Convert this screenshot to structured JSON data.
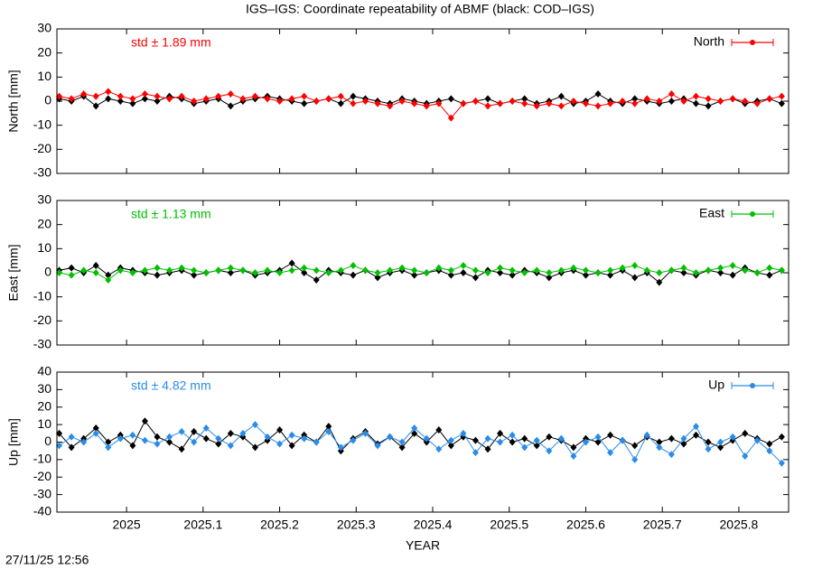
{
  "chart_data": [
    {
      "type": "line",
      "title": "IGS–IGS: Coordinate repeatability of ABMF (black: COD–IGS)",
      "ylabel": "North [mm]",
      "annotation": "std ± 1.89 mm",
      "ylim": [
        -30,
        30
      ],
      "yticks": [
        -30,
        -20,
        -10,
        0,
        10,
        20,
        30
      ],
      "legend": "upper right",
      "x": [
        2024.912,
        2024.928,
        2024.944,
        2024.96,
        2024.976,
        2024.992,
        2025.008,
        2025.024,
        2025.04,
        2025.056,
        2025.072,
        2025.088,
        2025.104,
        2025.12,
        2025.136,
        2025.152,
        2025.168,
        2025.184,
        2025.2,
        2025.216,
        2025.232,
        2025.248,
        2025.264,
        2025.28,
        2025.296,
        2025.312,
        2025.328,
        2025.344,
        2025.36,
        2025.376,
        2025.392,
        2025.408,
        2025.424,
        2025.44,
        2025.456,
        2025.472,
        2025.488,
        2025.504,
        2025.52,
        2025.536,
        2025.552,
        2025.568,
        2025.584,
        2025.6,
        2025.616,
        2025.632,
        2025.648,
        2025.664,
        2025.68,
        2025.696,
        2025.712,
        2025.728,
        2025.744,
        2025.76,
        2025.776,
        2025.792,
        2025.808,
        2025.824,
        2025.84,
        2025.856
      ],
      "series": [
        {
          "color": "#000000",
          "values": [
            1,
            0,
            2,
            -2,
            1,
            0,
            -1,
            1,
            0,
            2,
            1,
            -1,
            0,
            1,
            -2,
            0,
            1,
            2,
            1,
            0,
            -1,
            0,
            1,
            -1,
            2,
            1,
            0,
            -1,
            1,
            0,
            -1,
            0,
            1,
            -1,
            0,
            1,
            -1,
            0,
            1,
            -1,
            0,
            2,
            -1,
            0,
            3,
            0,
            -1,
            1,
            0,
            -1,
            0,
            1,
            -1,
            -2,
            0,
            1,
            -1,
            0,
            1,
            -1
          ]
        },
        {
          "name": "North",
          "color": "#ff0000",
          "values": [
            2,
            1,
            3,
            2,
            4,
            2,
            1,
            3,
            2,
            1,
            2,
            0,
            1,
            2,
            3,
            1,
            2,
            1,
            0,
            1,
            2,
            0,
            1,
            2,
            -1,
            0,
            -1,
            -2,
            0,
            -1,
            -2,
            -1,
            -7,
            -1,
            0,
            -2,
            -1,
            0,
            -1,
            -2,
            -1,
            -2,
            0,
            -1,
            -2,
            -1,
            0,
            -1,
            1,
            0,
            3,
            0,
            2,
            1,
            0,
            1,
            0,
            -1,
            1,
            2
          ]
        }
      ]
    },
    {
      "type": "line",
      "ylabel": "East [mm]",
      "annotation": "std ± 1.13 mm",
      "ylim": [
        -30,
        30
      ],
      "yticks": [
        -30,
        -20,
        -10,
        0,
        10,
        20,
        30
      ],
      "legend": "upper right",
      "x": [
        2024.912,
        2024.928,
        2024.944,
        2024.96,
        2024.976,
        2024.992,
        2025.008,
        2025.024,
        2025.04,
        2025.056,
        2025.072,
        2025.088,
        2025.104,
        2025.12,
        2025.136,
        2025.152,
        2025.168,
        2025.184,
        2025.2,
        2025.216,
        2025.232,
        2025.248,
        2025.264,
        2025.28,
        2025.296,
        2025.312,
        2025.328,
        2025.344,
        2025.36,
        2025.376,
        2025.392,
        2025.408,
        2025.424,
        2025.44,
        2025.456,
        2025.472,
        2025.488,
        2025.504,
        2025.52,
        2025.536,
        2025.552,
        2025.568,
        2025.584,
        2025.6,
        2025.616,
        2025.632,
        2025.648,
        2025.664,
        2025.68,
        2025.696,
        2025.712,
        2025.728,
        2025.744,
        2025.76,
        2025.776,
        2025.792,
        2025.808,
        2025.824,
        2025.84,
        2025.856
      ],
      "series": [
        {
          "color": "#000000",
          "values": [
            1,
            2,
            0,
            3,
            -1,
            2,
            1,
            0,
            -1,
            0,
            1,
            -1,
            0,
            1,
            0,
            1,
            -1,
            0,
            1,
            4,
            0,
            -3,
            1,
            0,
            -1,
            1,
            -2,
            0,
            1,
            -1,
            0,
            1,
            -1,
            0,
            -2,
            1,
            0,
            -1,
            1,
            0,
            -2,
            0,
            1,
            -1,
            0,
            -1,
            1,
            -2,
            0,
            -4,
            1,
            0,
            -1,
            1,
            0,
            -1,
            2,
            0,
            -1,
            1
          ]
        },
        {
          "name": "East",
          "color": "#00c000",
          "values": [
            0,
            -1,
            1,
            0,
            -3,
            1,
            0,
            1,
            2,
            1,
            2,
            1,
            0,
            1,
            2,
            1,
            0,
            1,
            0,
            1,
            2,
            1,
            0,
            1,
            3,
            1,
            0,
            1,
            2,
            1,
            0,
            2,
            1,
            3,
            1,
            0,
            2,
            1,
            0,
            1,
            0,
            1,
            2,
            1,
            0,
            1,
            2,
            3,
            1,
            0,
            1,
            2,
            0,
            1,
            2,
            3,
            1,
            0,
            2,
            1
          ]
        }
      ]
    },
    {
      "type": "line",
      "ylabel": "Up [mm]",
      "xlabel": "YEAR",
      "annotation": "std ± 4.82 mm",
      "ylim": [
        -40,
        40
      ],
      "yticks": [
        -40,
        -30,
        -20,
        -10,
        0,
        10,
        20,
        30,
        40
      ],
      "legend": "upper right",
      "xlim": [
        2024.909,
        2025.865
      ],
      "xticks": [
        2025,
        2025.1,
        2025.2,
        2025.3,
        2025.4,
        2025.5,
        2025.6,
        2025.7,
        2025.8
      ],
      "x": [
        2024.912,
        2024.928,
        2024.944,
        2024.96,
        2024.976,
        2024.992,
        2025.008,
        2025.024,
        2025.04,
        2025.056,
        2025.072,
        2025.088,
        2025.104,
        2025.12,
        2025.136,
        2025.152,
        2025.168,
        2025.184,
        2025.2,
        2025.216,
        2025.232,
        2025.248,
        2025.264,
        2025.28,
        2025.296,
        2025.312,
        2025.328,
        2025.344,
        2025.36,
        2025.376,
        2025.392,
        2025.408,
        2025.424,
        2025.44,
        2025.456,
        2025.472,
        2025.488,
        2025.504,
        2025.52,
        2025.536,
        2025.552,
        2025.568,
        2025.584,
        2025.6,
        2025.616,
        2025.632,
        2025.648,
        2025.664,
        2025.68,
        2025.696,
        2025.712,
        2025.728,
        2025.744,
        2025.76,
        2025.776,
        2025.792,
        2025.808,
        2025.824,
        2025.84,
        2025.856
      ],
      "series": [
        {
          "color": "#000000",
          "values": [
            5,
            -3,
            2,
            8,
            0,
            4,
            -2,
            12,
            3,
            0,
            -4,
            6,
            2,
            -1,
            5,
            3,
            -3,
            1,
            7,
            -2,
            4,
            0,
            9,
            -5,
            2,
            6,
            -1,
            3,
            -3,
            5,
            0,
            7,
            -2,
            3,
            1,
            -4,
            5,
            0,
            2,
            -2,
            3,
            1,
            -3,
            2,
            0,
            4,
            1,
            -2,
            3,
            0,
            2,
            -1,
            4,
            0,
            -3,
            1,
            5,
            2,
            -1,
            3
          ]
        },
        {
          "name": "Up",
          "color": "#2a8ce8",
          "values": [
            -2,
            3,
            0,
            5,
            -3,
            2,
            4,
            1,
            -1,
            3,
            6,
            0,
            8,
            2,
            -2,
            5,
            10,
            3,
            -1,
            4,
            2,
            0,
            6,
            -3,
            1,
            5,
            -2,
            3,
            0,
            8,
            2,
            -4,
            1,
            5,
            -6,
            2,
            0,
            4,
            -3,
            1,
            -5,
            2,
            -8,
            0,
            3,
            -6,
            1,
            -10,
            4,
            -3,
            -7,
            2,
            9,
            -4,
            0,
            3,
            -8,
            1,
            -5,
            -12
          ]
        }
      ]
    }
  ],
  "footer": "27/11/25 12:56"
}
